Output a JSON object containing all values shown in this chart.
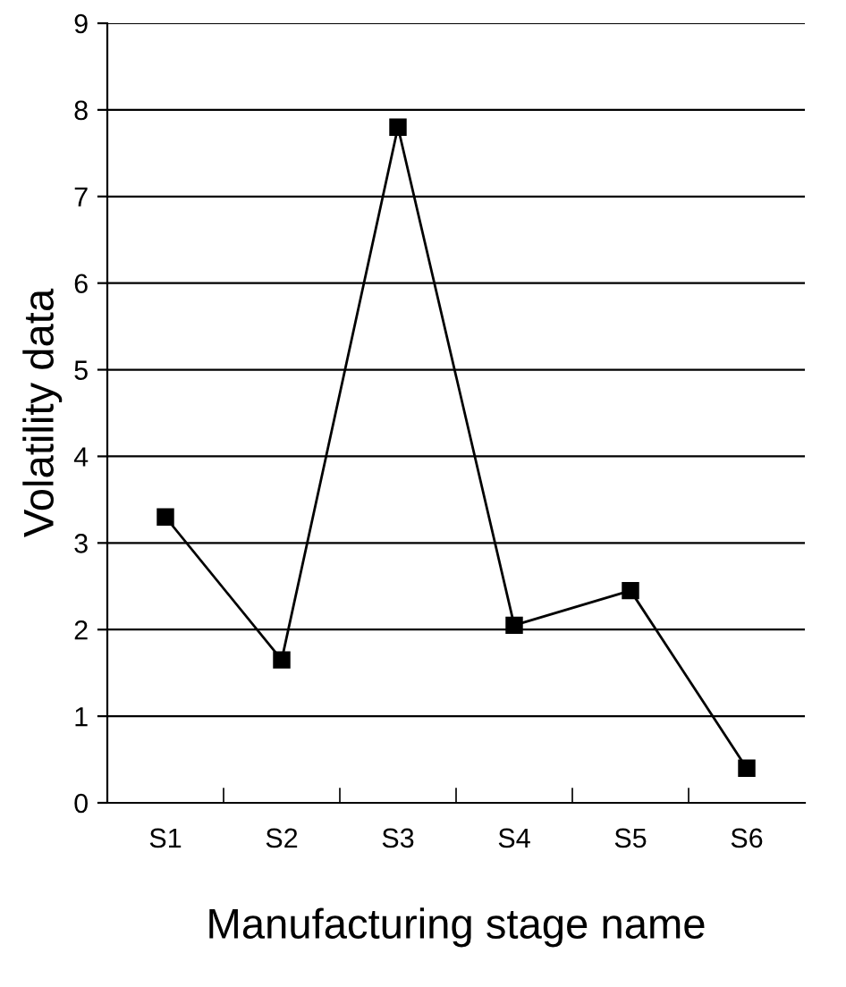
{
  "chart_data": {
    "type": "line",
    "xlabel": "Manufacturing stage name",
    "ylabel": "Volatility data",
    "categories": [
      "S1",
      "S2",
      "S3",
      "S4",
      "S5",
      "S6"
    ],
    "series": [
      {
        "color": "#000000",
        "values": [
          3.3,
          1.65,
          7.8,
          2.05,
          2.45,
          0.4
        ]
      }
    ],
    "ylim": [
      0,
      9
    ],
    "yticks": [
      0,
      1,
      2,
      3,
      4,
      5,
      6,
      7,
      8,
      9
    ],
    "grid": "y",
    "marker": "square",
    "line_style": "solid",
    "legend": false
  }
}
